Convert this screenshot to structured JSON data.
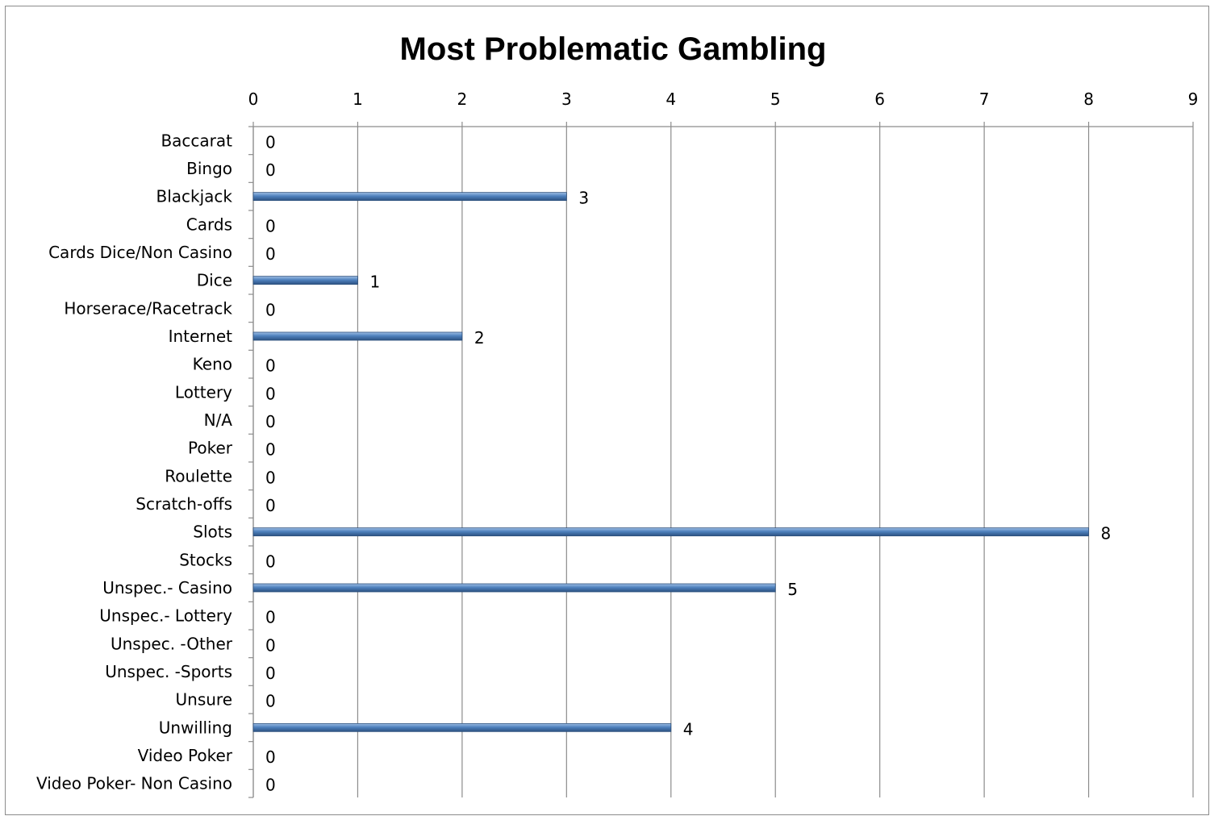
{
  "chart_data": {
    "type": "bar",
    "orientation": "horizontal",
    "title": "Most Problematic Gambling",
    "xlabel": "",
    "ylabel": "",
    "xlim": [
      0,
      9
    ],
    "x_ticks": [
      "0",
      "1",
      "2",
      "3",
      "4",
      "5",
      "6",
      "7",
      "8",
      "9"
    ],
    "x_axis_position": "top",
    "grid": true,
    "legend": "none",
    "bar_color": "#4f81bd",
    "categories": [
      "Baccarat",
      "Bingo",
      "Blackjack",
      "Cards",
      "Cards Dice/Non Casino",
      "Dice",
      "Horserace/Racetrack",
      "Internet",
      "Keno",
      "Lottery",
      "N/A",
      "Poker",
      "Roulette",
      "Scratch-offs",
      "Slots",
      "Stocks",
      "Unspec.- Casino",
      "Unspec.- Lottery",
      "Unspec. -Other",
      "Unspec. -Sports",
      "Unsure",
      "Unwilling",
      "Video Poker",
      "Video Poker- Non Casino"
    ],
    "values": [
      0,
      0,
      3,
      0,
      0,
      1,
      0,
      2,
      0,
      0,
      0,
      0,
      0,
      0,
      8,
      0,
      5,
      0,
      0,
      0,
      0,
      4,
      0,
      0
    ],
    "data_labels": [
      "0",
      "0",
      "3",
      "0",
      "0",
      "1",
      "0",
      "2",
      "0",
      "0",
      "0",
      "0",
      "0",
      "0",
      "8",
      "0",
      "5",
      "0",
      "0",
      "0",
      "0",
      "4",
      "0",
      "0"
    ]
  }
}
